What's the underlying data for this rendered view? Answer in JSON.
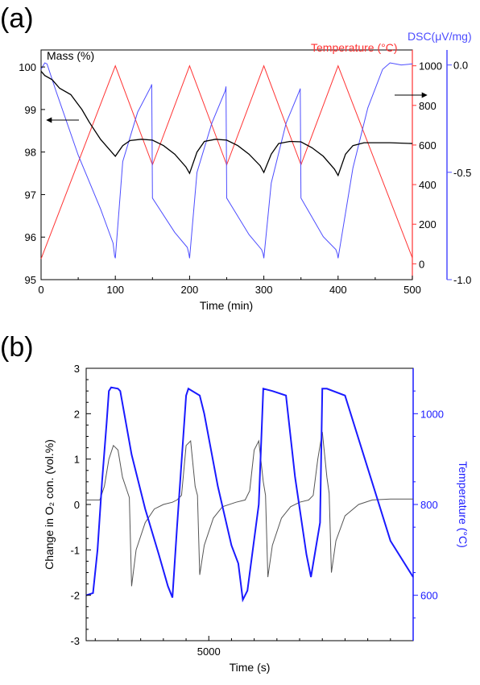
{
  "panels": {
    "a": "(a)",
    "b": "(b)"
  },
  "colors": {
    "mass": "#000000",
    "temperature_a": "#ff3333",
    "dsc": "#4d4dff",
    "o2": "#555555",
    "temperature_b": "#1a1aff"
  },
  "chart_data": [
    {
      "type": "line",
      "xlabel": "Time (min)",
      "xlim": [
        0,
        500
      ],
      "xticks": [
        0,
        100,
        200,
        300,
        400,
        500
      ],
      "axes": {
        "mass": {
          "label": "Mass (%)",
          "lim": [
            95,
            100.4
          ],
          "ticks": [
            95,
            96,
            97,
            98,
            99,
            100
          ]
        },
        "temperature": {
          "label": "Temperature (°C)",
          "lim": [
            -80,
            1080
          ],
          "ticks": [
            0,
            200,
            400,
            600,
            800,
            1000
          ]
        },
        "dsc": {
          "label": "DSC(μV/mg)",
          "lim": [
            -1.0,
            0.07
          ],
          "ticks": [
            -1.0,
            -0.5,
            0.0
          ]
        }
      },
      "series": [
        {
          "axis": "mass",
          "x": [
            0,
            5,
            15,
            25,
            40,
            55,
            65,
            80,
            95,
            100,
            110,
            120,
            135,
            150,
            165,
            180,
            195,
            200,
            210,
            220,
            235,
            250,
            265,
            280,
            295,
            300,
            310,
            320,
            335,
            350,
            365,
            380,
            395,
            400,
            410,
            420,
            435,
            450,
            470,
            500
          ],
          "y": [
            99.9,
            99.8,
            99.7,
            99.5,
            99.35,
            99.0,
            98.7,
            98.3,
            98.0,
            97.9,
            98.15,
            98.27,
            98.3,
            98.28,
            98.15,
            97.95,
            97.65,
            97.5,
            98.0,
            98.25,
            98.3,
            98.28,
            98.15,
            97.95,
            97.68,
            97.52,
            97.95,
            98.2,
            98.25,
            98.24,
            98.1,
            97.9,
            97.6,
            97.45,
            97.95,
            98.15,
            98.22,
            98.22,
            98.22,
            98.2
          ]
        },
        {
          "axis": "temperature",
          "x": [
            0,
            100,
            150,
            200,
            250,
            300,
            350,
            400,
            500
          ],
          "y": [
            25,
            1000,
            500,
            1000,
            500,
            1000,
            500,
            1000,
            30
          ]
        },
        {
          "axis": "dsc",
          "x": [
            0,
            5,
            8,
            20,
            50,
            80,
            97,
            99,
            100,
            110,
            130,
            148,
            149,
            150,
            180,
            197,
            199,
            200,
            210,
            230,
            248,
            249,
            250,
            280,
            297,
            299,
            300,
            310,
            330,
            348,
            349,
            350,
            380,
            397,
            399,
            400,
            420,
            440,
            460,
            470,
            485,
            500
          ],
          "y": [
            -0.02,
            0.01,
            0.005,
            -0.12,
            -0.42,
            -0.67,
            -0.83,
            -0.89,
            -0.9,
            -0.45,
            -0.22,
            -0.1,
            -0.09,
            -0.62,
            -0.78,
            -0.85,
            -0.88,
            -0.9,
            -0.5,
            -0.27,
            -0.12,
            -0.1,
            -0.62,
            -0.79,
            -0.86,
            -0.88,
            -0.9,
            -0.55,
            -0.27,
            -0.12,
            -0.11,
            -0.62,
            -0.8,
            -0.86,
            -0.88,
            -0.9,
            -0.48,
            -0.2,
            -0.02,
            0.01,
            0.0,
            0.005
          ]
        }
      ]
    },
    {
      "type": "line",
      "xlabel": "Time (s)",
      "xlim": [
        2300,
        9500
      ],
      "xticks": [
        5000
      ],
      "axes": {
        "o2": {
          "label": "Change in O₂ con. (vol.%)",
          "lim": [
            -3,
            3
          ],
          "ticks": [
            -3,
            -2,
            -1,
            0,
            1,
            2,
            3
          ]
        },
        "temperature": {
          "label": "Temperature (°C)",
          "lim": [
            500,
            1100
          ],
          "ticks": [
            600,
            800,
            1000
          ]
        }
      },
      "series": [
        {
          "axis": "o2",
          "x": [
            2300,
            2500,
            2600,
            2700,
            2800,
            2900,
            3000,
            3100,
            3200,
            3250,
            3300,
            3400,
            3600,
            3800,
            4000,
            4200,
            4300,
            4400,
            4500,
            4600,
            4700,
            4750,
            4800,
            4900,
            5100,
            5300,
            5600,
            5800,
            5900,
            6000,
            6100,
            6200,
            6250,
            6300,
            6400,
            6600,
            6800,
            7000,
            7200,
            7300,
            7400,
            7500,
            7600,
            7650,
            7700,
            7800,
            8000,
            8300,
            8600,
            9000,
            9500
          ],
          "y": [
            0.1,
            0.1,
            0.1,
            0.4,
            1.0,
            1.3,
            1.2,
            0.6,
            0.3,
            0.15,
            -1.8,
            -1.0,
            -0.4,
            -0.1,
            0.0,
            0.05,
            0.1,
            0.2,
            1.3,
            1.4,
            0.4,
            0.2,
            -1.55,
            -0.9,
            -0.3,
            -0.05,
            0.05,
            0.1,
            0.3,
            1.2,
            1.4,
            0.5,
            0.2,
            -1.6,
            -0.9,
            -0.3,
            -0.05,
            0.05,
            0.1,
            0.2,
            1.0,
            1.6,
            0.6,
            0.25,
            -1.5,
            -0.8,
            -0.25,
            0.0,
            0.1,
            0.12,
            0.12
          ]
        },
        {
          "axis": "temperature",
          "x": [
            2300,
            2450,
            2550,
            2650,
            2750,
            2800,
            2850,
            3000,
            3050,
            3300,
            3600,
            3900,
            4100,
            4200,
            4300,
            4500,
            4550,
            4800,
            4900,
            5200,
            5500,
            5650,
            5750,
            5850,
            6100,
            6200,
            6400,
            6700,
            6900,
            7150,
            7250,
            7450,
            7500,
            7600,
            8000,
            8500,
            9000,
            9500
          ],
          "y": [
            600,
            605,
            700,
            850,
            980,
            1050,
            1058,
            1055,
            1050,
            910,
            790,
            690,
            620,
            595,
            750,
            1040,
            1055,
            1040,
            1000,
            840,
            710,
            670,
            590,
            610,
            800,
            1055,
            1050,
            1040,
            860,
            690,
            640,
            760,
            1055,
            1055,
            1040,
            880,
            720,
            640
          ]
        }
      ]
    }
  ]
}
